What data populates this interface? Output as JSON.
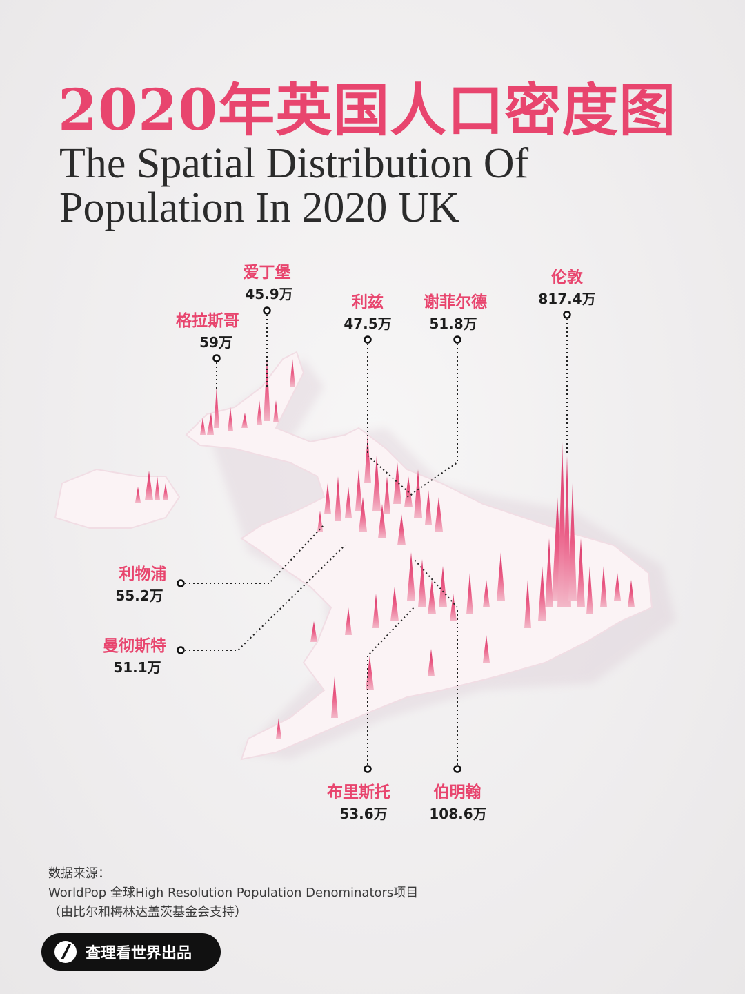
{
  "title_cn": "2020年英国人口密度图",
  "title_en": [
    "The Spatial Distribution Of",
    "Population In 2020 UK"
  ],
  "cities": [
    {
      "name": "爱丁堡",
      "population": "45.9万"
    },
    {
      "name": "格拉斯哥",
      "population": "59万"
    },
    {
      "name": "利兹",
      "population": "47.5万"
    },
    {
      "name": "谢菲尔德",
      "population": "51.8万"
    },
    {
      "name": "伦敦",
      "population": "817.4万"
    },
    {
      "name": "利物浦",
      "population": "55.2万"
    },
    {
      "name": "曼彻斯特",
      "population": "51.1万"
    },
    {
      "name": "布里斯托",
      "population": "53.6万"
    },
    {
      "name": "伯明翰",
      "population": "108.6万"
    }
  ],
  "source": {
    "label": "数据来源：",
    "line1": "WorldPop 全球High Resolution Population Denominators项目",
    "line2": "（由比尔和梅林达盖茨基金会支持）"
  },
  "brand": {
    "text": "查理看世界出品",
    "icon": "slash-logo-icon"
  },
  "colors": {
    "accent": "#e8456e",
    "text": "#2b2b2b",
    "background": "#efedee",
    "spike": "#ea5a84"
  }
}
